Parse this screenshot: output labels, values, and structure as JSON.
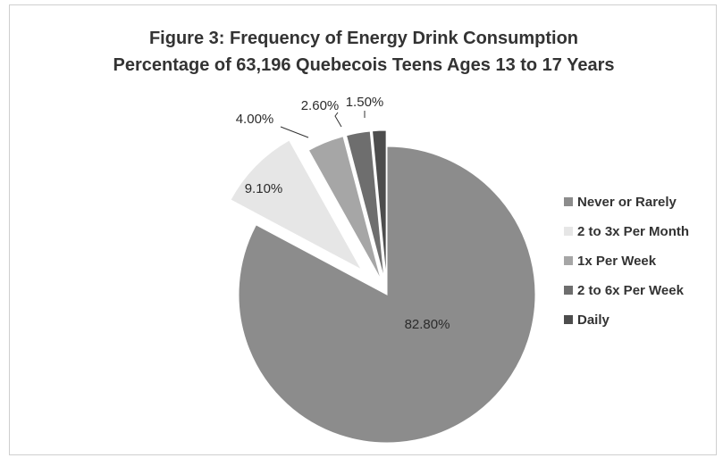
{
  "chart_data": {
    "type": "pie",
    "title": "Figure 3: Frequency of Energy Drink Consumption",
    "subtitle": "Percentage of 63,196 Quebecois Teens Ages 13 to 17 Years",
    "legend_position": "right",
    "categories": [
      "Never or Rarely",
      "2 to 3x  Per Month",
      "1x Per Week",
      "2 to 6x Per Week",
      "Daily"
    ],
    "values": [
      82.8,
      9.1,
      4.0,
      2.6,
      1.5
    ],
    "data_labels": [
      "82.80%",
      "9.10%",
      "4.00%",
      "2.60%",
      "1.50%"
    ],
    "colors": [
      "#8c8c8c",
      "#e6e6e6",
      "#a6a6a6",
      "#6e6e6e",
      "#4d4d4d"
    ]
  }
}
